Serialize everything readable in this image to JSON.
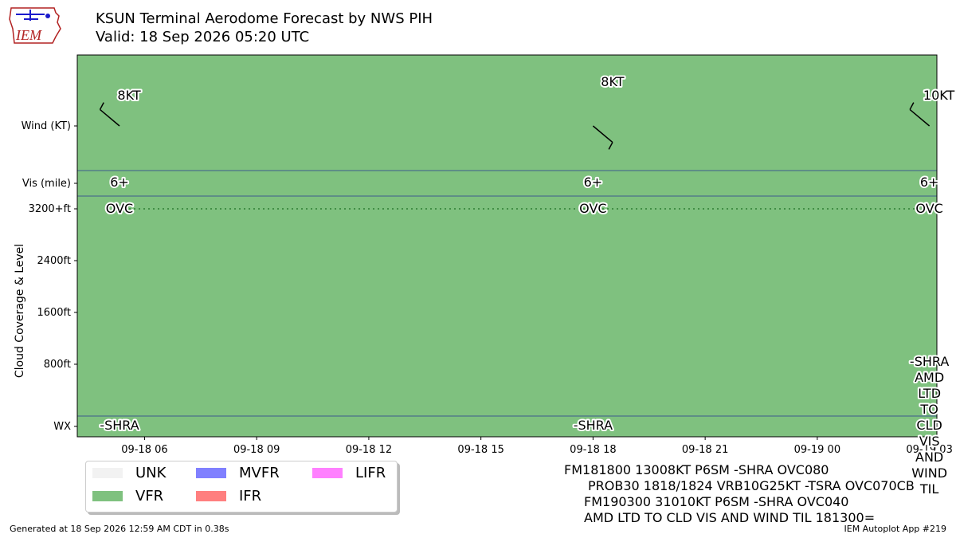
{
  "title": {
    "line1": "KSUN Terminal Aerodome Forecast by NWS PIH",
    "line2": "Valid: 18 Sep 2026 05:20 UTC"
  },
  "logo_text": "IEM",
  "colors": {
    "VFR": "#7fc17f",
    "UNK": "#f2f2f2",
    "MVFR": "#8080ff",
    "IFR": "#ff7f7f",
    "LIFR": "#ff80ff",
    "grid_line": "#3c5a8c",
    "cloud_line": "#2e7d32"
  },
  "legend": [
    {
      "label": "UNK",
      "color": "#f2f2f2"
    },
    {
      "label": "VFR",
      "color": "#7fc17f"
    },
    {
      "label": "MVFR",
      "color": "#8080ff"
    },
    {
      "label": "IFR",
      "color": "#ff7f7f"
    },
    {
      "label": "LIFR",
      "color": "#ff80ff"
    }
  ],
  "taf_text": [
    "FM181800 13008KT P6SM -SHRA OVC080",
    "PROB30 1818/1824 VRB10G25KT -TSRA OVC070CB",
    "FM190300 31010KT P6SM -SHRA OVC040",
    "AMD LTD TO CLD VIS AND WIND TIL 181300="
  ],
  "footer": {
    "generated": "Generated at 18 Sep 2026 12:59 AM CDT in 0.38s",
    "app": "IEM Autoplot App #219"
  },
  "chart_data": {
    "type": "timeline",
    "ylabel": "Cloud Coverage & Level",
    "x_start_hours": 4.2,
    "x_end_hours": 27.2,
    "x_ticks": [
      {
        "hours": 6,
        "label": "09-18 06"
      },
      {
        "hours": 9,
        "label": "09-18 09"
      },
      {
        "hours": 12,
        "label": "09-18 12"
      },
      {
        "hours": 15,
        "label": "09-18 15"
      },
      {
        "hours": 18,
        "label": "09-18 18"
      },
      {
        "hours": 21,
        "label": "09-18 21"
      },
      {
        "hours": 24,
        "label": "09-19 00"
      },
      {
        "hours": 27,
        "label": "09-19 03"
      }
    ],
    "row_labels": {
      "wind": "Wind (KT)",
      "vis": "Vis (mile)",
      "wx": "WX"
    },
    "cloud_ticks": [
      "3200+ft",
      "2400ft",
      "1600ft",
      "800ft"
    ],
    "flight_category": "VFR",
    "forecasts": [
      {
        "time": "09-18 05:20",
        "hours": 5.33,
        "wind_dir": 310,
        "wind_label": "8KT",
        "vis": "6+",
        "cloud": "OVC",
        "wx": "-SHRA"
      },
      {
        "time": "09-18 18",
        "hours": 18.0,
        "wind_dir": 130,
        "wind_label": "8KT",
        "vis": "6+",
        "cloud": "OVC",
        "wx": "-SHRA"
      },
      {
        "time": "09-19 03",
        "hours": 27.0,
        "wind_dir": 310,
        "wind_label": "10KT",
        "vis": "6+",
        "cloud": "OVC",
        "wx": "-SHRA\nAMD\nLTD\nTO\nCLD\nVIS\nAND\nWIND\nTIL"
      }
    ]
  }
}
